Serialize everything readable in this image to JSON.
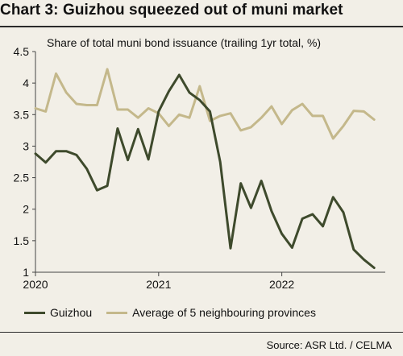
{
  "title": "Chart 3: Guizhou squeezed out of muni market",
  "source": "Source: ASR Ltd. / CELMA",
  "chart_data": {
    "type": "line",
    "title": "Chart 3: Guizhou squeezed out of muni market",
    "subtitle": "Share of total muni bond issuance (trailing 1yr total, %)",
    "xlabel": "",
    "ylabel": "",
    "xlim": [
      2020.0,
      2022.84
    ],
    "ylim": [
      1,
      4.5
    ],
    "yticks": [
      "1",
      "1.5",
      "2",
      "2.5",
      "3",
      "3.5",
      "4",
      "4.5"
    ],
    "xticks": [
      {
        "value": 2020,
        "label": "2020"
      },
      {
        "value": 2021,
        "label": "2021"
      },
      {
        "value": 2022,
        "label": "2022"
      }
    ],
    "grid": false,
    "legend_position": "bottom",
    "colors": {
      "guizhou": "#3e4a2c",
      "neighbours": "#c4b88b",
      "axis": "#444444",
      "background": "#f2efe7"
    },
    "series": [
      {
        "name": "Guizhou",
        "color": "#3e4a2c",
        "x": [
          2020.0,
          2020.0833,
          2020.1667,
          2020.25,
          2020.3333,
          2020.4167,
          2020.5,
          2020.5833,
          2020.6667,
          2020.75,
          2020.8333,
          2020.9167,
          2021.0,
          2021.0833,
          2021.1667,
          2021.25,
          2021.3333,
          2021.4167,
          2021.5,
          2021.5833,
          2021.6667,
          2021.75,
          2021.8333,
          2021.9167,
          2022.0,
          2022.0833,
          2022.1667,
          2022.25,
          2022.3333,
          2022.4167,
          2022.5,
          2022.5833,
          2022.6667,
          2022.75
        ],
        "y": [
          2.88,
          2.74,
          2.92,
          2.92,
          2.86,
          2.64,
          2.3,
          2.37,
          3.28,
          2.78,
          3.27,
          2.79,
          3.55,
          3.87,
          4.13,
          3.85,
          3.73,
          3.55,
          2.75,
          1.38,
          2.41,
          2.02,
          2.45,
          1.97,
          1.61,
          1.39,
          1.85,
          1.92,
          1.73,
          2.19,
          1.95,
          1.36,
          1.2,
          1.07
        ]
      },
      {
        "name": "Average of 5 neighbouring provinces",
        "color": "#c4b88b",
        "x": [
          2020.0,
          2020.0833,
          2020.1667,
          2020.25,
          2020.3333,
          2020.4167,
          2020.5,
          2020.5833,
          2020.6667,
          2020.75,
          2020.8333,
          2020.9167,
          2021.0,
          2021.0833,
          2021.1667,
          2021.25,
          2021.3333,
          2021.4167,
          2021.5,
          2021.5833,
          2021.6667,
          2021.75,
          2021.8333,
          2021.9167,
          2022.0,
          2022.0833,
          2022.1667,
          2022.25,
          2022.3333,
          2022.4167,
          2022.5,
          2022.5833,
          2022.6667,
          2022.75
        ],
        "y": [
          3.6,
          3.55,
          4.15,
          3.85,
          3.67,
          3.65,
          3.65,
          4.22,
          3.58,
          3.58,
          3.45,
          3.6,
          3.52,
          3.32,
          3.5,
          3.45,
          3.95,
          3.4,
          3.48,
          3.52,
          3.25,
          3.3,
          3.45,
          3.63,
          3.35,
          3.57,
          3.67,
          3.48,
          3.48,
          3.12,
          3.32,
          3.56,
          3.55,
          3.42
        ]
      }
    ]
  }
}
